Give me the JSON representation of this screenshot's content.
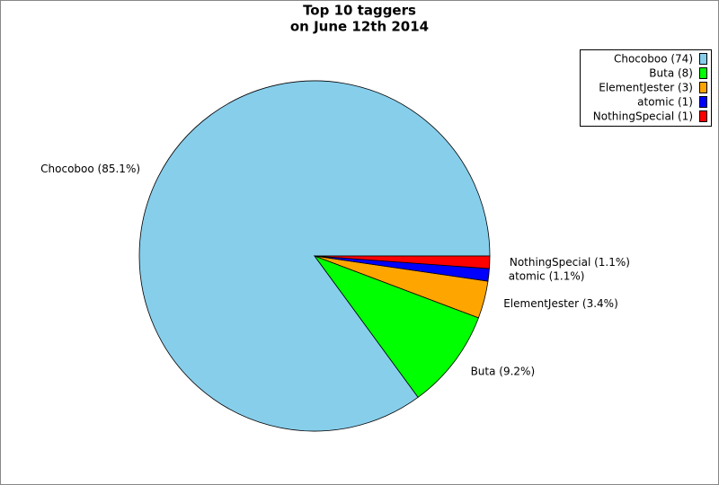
{
  "chart_data": {
    "type": "pie",
    "title": "Top 10 taggers",
    "subtitle": "on June 12th 2014",
    "values": [
      74,
      8,
      3,
      1,
      1
    ],
    "value_labels": [
      "Chocoboo (74)",
      "Buta (8)",
      "ElementJester (3)",
      "atomic (1)",
      "NothingSpecial (1)"
    ],
    "slice_labels": [
      "Chocoboo (85.1%)",
      "Buta (9.2%)",
      "ElementJester (3.4%)",
      "atomic (1.1%)",
      "NothingSpecial (1.1%)"
    ],
    "colors": [
      "#87ceeb",
      "#00ff00",
      "#ffa500",
      "#0000ff",
      "#ff0000"
    ],
    "legend": "upper right"
  }
}
